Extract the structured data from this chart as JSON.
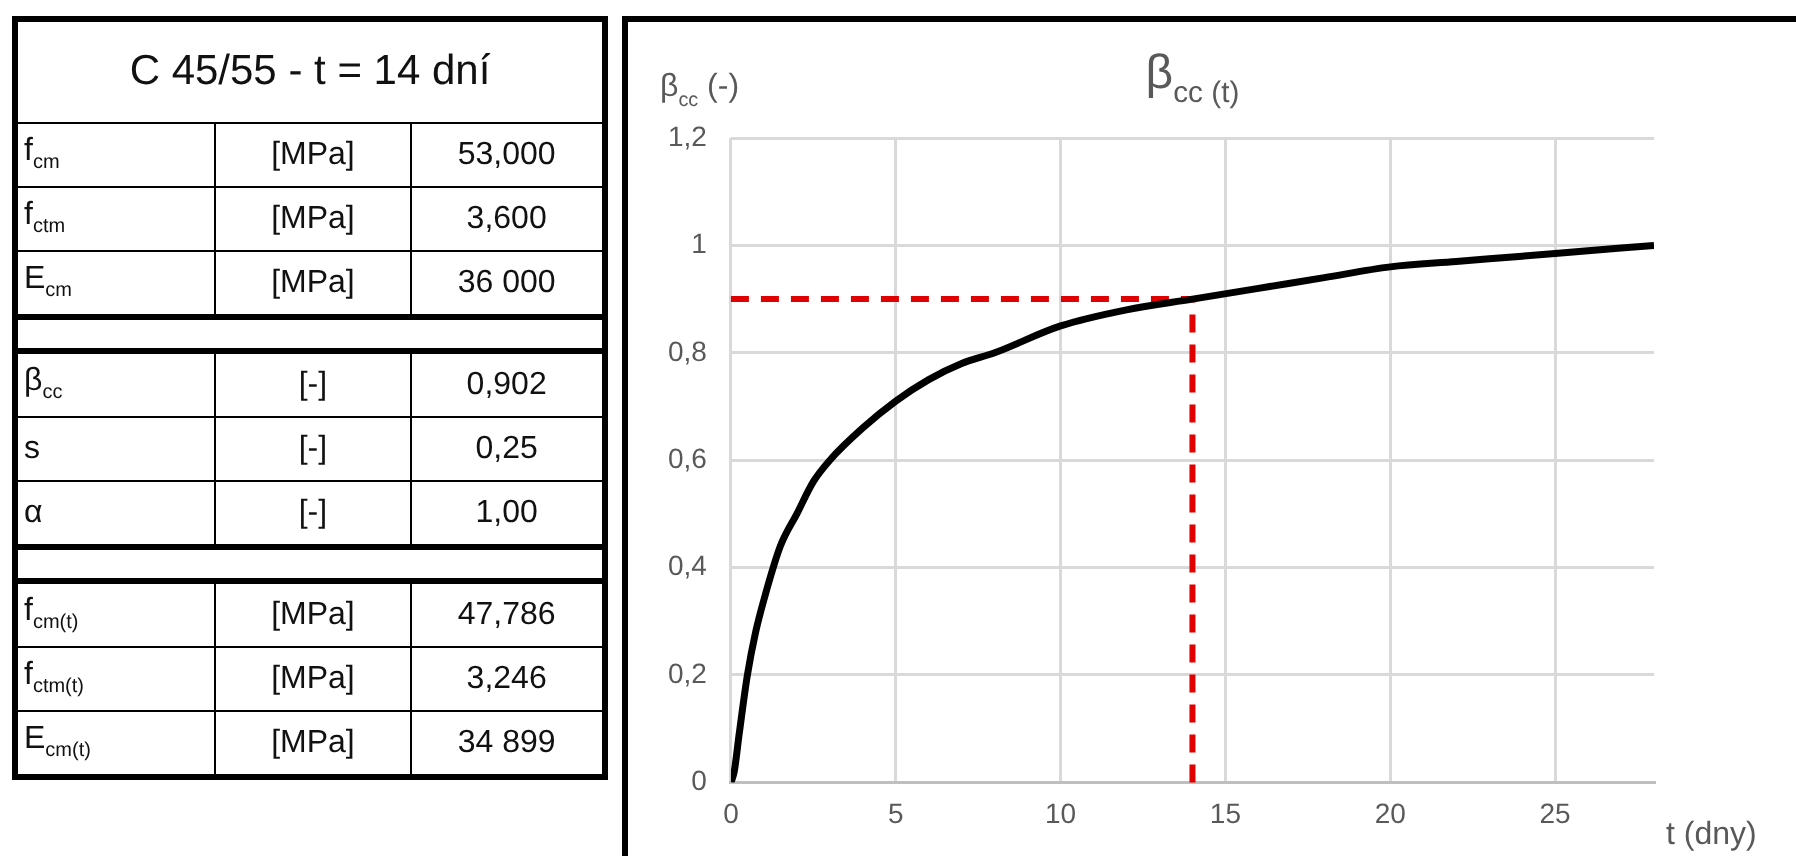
{
  "chart_data": [
    {
      "type": "other",
      "title": "C 45/55 - t = 14 dní",
      "cell_labels": [
        [
          "f$_{cm}$",
          "[MPa]",
          "53,000"
        ],
        [
          "f$_{ctm}$",
          "[MPa]",
          "3,600"
        ],
        [
          "E$_{cm}$",
          "[MPa]",
          "36 000"
        ],
        null,
        [
          "β$_{cc}$",
          "[-]",
          "0,902"
        ],
        [
          "s",
          "[-]",
          "0,25"
        ],
        [
          "α",
          "[-]",
          "1,00"
        ],
        null,
        [
          "f$_{cm(t)}$",
          "[MPa]",
          "47,786"
        ],
        [
          "f$_{ctm(t)}$",
          "[MPa]",
          "3,246"
        ],
        [
          "E$_{cm(t)}$",
          "[MPa]",
          "34 899"
        ]
      ]
    },
    {
      "type": "line",
      "title": "β$_{cc (t)}$",
      "ylabel": "β$_{cc}$ (-)",
      "xlabel": "t (dny)",
      "xlim": [
        0,
        28
      ],
      "xticks": [
        0,
        5,
        10,
        15,
        20,
        25
      ],
      "ylim": [
        0,
        1.2
      ],
      "yticks": [
        0,
        {
          "value": 0.2,
          "label": "0,2"
        },
        {
          "value": 0.4,
          "label": "0,4"
        },
        {
          "value": 0.6,
          "label": "0,6"
        },
        {
          "value": 0.8,
          "label": "0,8"
        },
        1,
        {
          "value": 1.2,
          "label": "1,2"
        }
      ],
      "grid": true,
      "series": [
        {
          "color": "#000000",
          "x": [
            0,
            0.1,
            0.25,
            0.5,
            0.75,
            1,
            1.5,
            2,
            2.5,
            3,
            4,
            5,
            6,
            7,
            8,
            10,
            12,
            14,
            16,
            18,
            20,
            22,
            24,
            26,
            28
          ],
          "values": [
            0,
            0.02,
            0.09,
            0.2,
            0.28,
            0.34,
            0.44,
            0.5,
            0.56,
            0.6,
            0.66,
            0.71,
            0.75,
            0.78,
            0.8,
            0.85,
            0.88,
            0.9,
            0.92,
            0.94,
            0.96,
            0.97,
            0.98,
            0.99,
            1
          ]
        }
      ],
      "ref_lines": [
        {
          "axis": "y",
          "value": 0.9,
          "color": "#e00000",
          "line_style": "dashed"
        },
        {
          "axis": "x",
          "value": 14,
          "color": "#e00000",
          "line_style": "dashed"
        }
      ]
    }
  ]
}
